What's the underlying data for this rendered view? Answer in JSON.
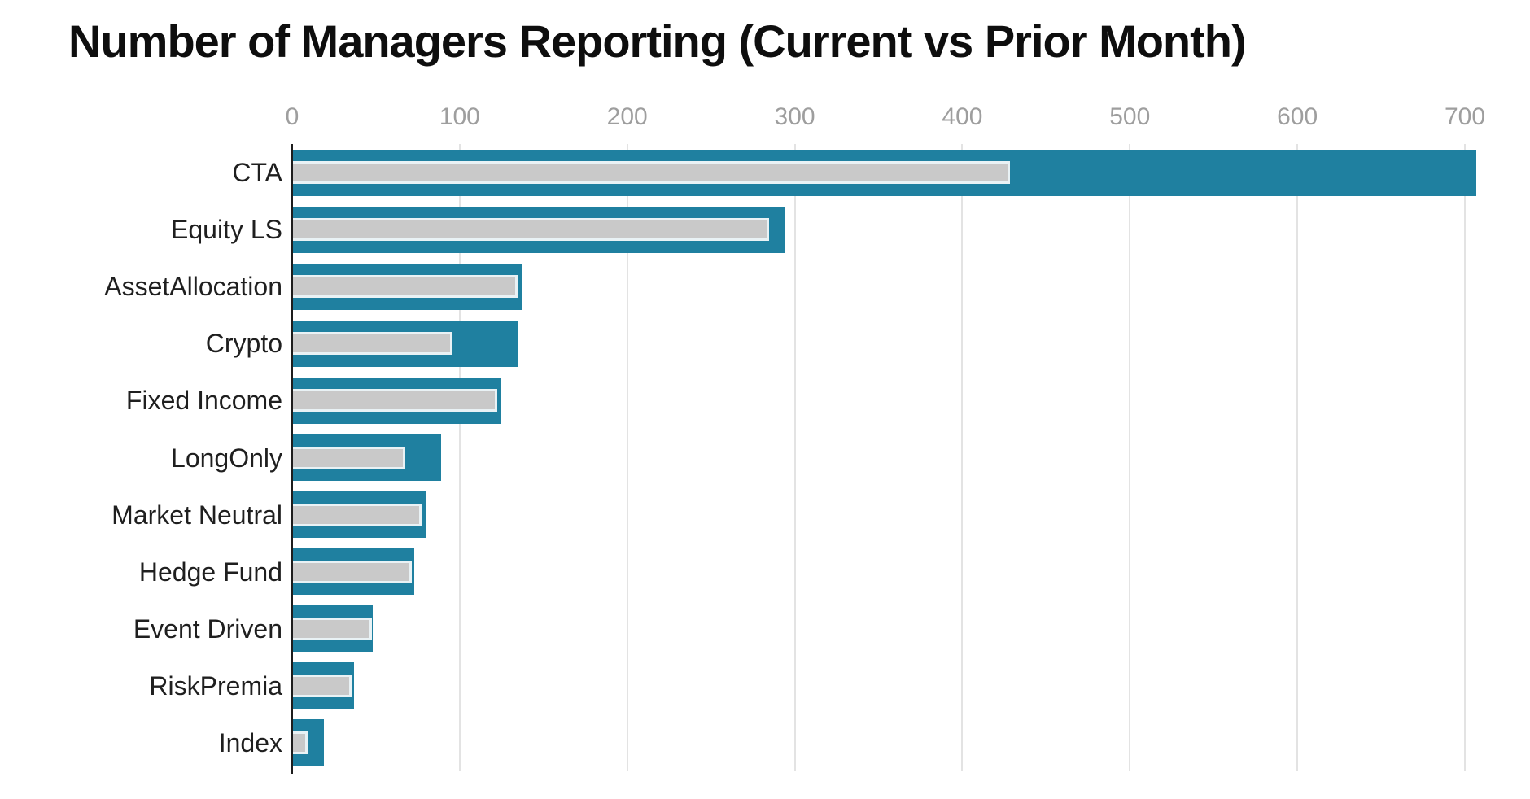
{
  "chart_data": {
    "type": "bar",
    "orientation": "horizontal",
    "title": "Number of Managers Reporting (Current vs Prior Month)",
    "categories": [
      "CTA",
      "Equity LS",
      "AssetAllocation",
      "Crypto",
      "Fixed Income",
      "LongOnly",
      "Market Neutral",
      "Hedge Fund",
      "Event Driven",
      "RiskPremia",
      "Index"
    ],
    "series": [
      {
        "name": "Current Month",
        "color": "#1f80a0",
        "values": [
          707,
          294,
          137,
          135,
          125,
          89,
          80,
          73,
          48,
          37,
          19
        ]
      },
      {
        "name": "Prior Month",
        "color": "#c9c9c9",
        "values": [
          427,
          283,
          133,
          94,
          121,
          66,
          76,
          70,
          46,
          34,
          8
        ]
      }
    ],
    "xlabel": "",
    "ylabel": "",
    "x_axis": {
      "position": "top",
      "min": 0,
      "max": 740,
      "ticks": [
        0,
        100,
        200,
        300,
        400,
        500,
        600,
        700
      ],
      "tick_label_color": "#9e9e9e",
      "gridline_color": "#e3e3e3",
      "grid": true
    },
    "legend": "none",
    "styles": {
      "title_color": "#0e0e0e",
      "category_label_color": "#1f1f1f",
      "axis_line_color": "#1d1d1d",
      "prior_bar_outline_color": "#e9f2f5",
      "background": "#ffffff"
    }
  }
}
